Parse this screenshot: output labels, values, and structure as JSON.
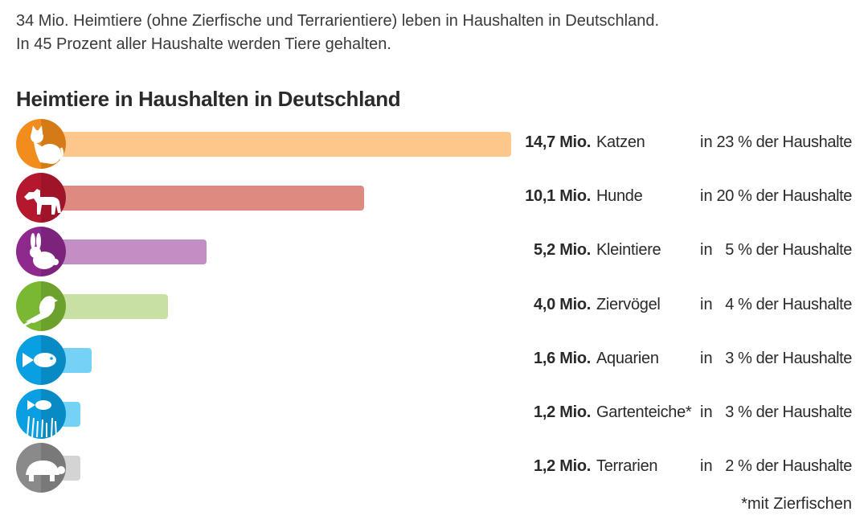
{
  "intro": {
    "line1": "34 Mio. Heimtiere (ohne Zierfische und Terrarientiere) leben in Haushalten in Deutschland.",
    "line2": "In 45 Prozent aller Haushalte werden Tiere gehalten."
  },
  "chart_data": {
    "type": "bar",
    "title": "Heimtiere in Haushalten in Deutschland",
    "unit": "Mio.",
    "xlabel": "",
    "ylabel": "",
    "xlim": [
      0,
      14.7
    ],
    "rows": [
      {
        "category": "Katzen",
        "value": 14.7,
        "value_label": "14,7 Mio.",
        "label": "Katzen",
        "prefix": "in",
        "percent_label": "23 % der Haushalte",
        "color": "#fdc68b",
        "icon_color": "#f28c1c",
        "icon": "cat-icon"
      },
      {
        "category": "Hunde",
        "value": 10.1,
        "value_label": "10,1 Mio.",
        "label": "Hunde",
        "prefix": "in",
        "percent_label": "20 % der Haushalte",
        "color": "#de8a80",
        "icon_color": "#b5172f",
        "icon": "dog-icon"
      },
      {
        "category": "Kleintiere",
        "value": 5.2,
        "value_label": "5,2 Mio.",
        "label": "Kleintiere",
        "prefix": "in",
        "percent_label": "5 % der Haushalte",
        "color": "#c28ec4",
        "icon_color": "#8e2a8e",
        "icon": "rabbit-icon"
      },
      {
        "category": "Ziervögel",
        "value": 4.0,
        "value_label": "4,0 Mio.",
        "label": "Ziervögel",
        "prefix": "in",
        "percent_label": "4 % der Haushalte",
        "color": "#c8e0a4",
        "icon_color": "#7ab833",
        "icon": "bird-icon"
      },
      {
        "category": "Aquarien",
        "value": 1.6,
        "value_label": "1,6 Mio.",
        "label": "Aquarien",
        "prefix": "in",
        "percent_label": "3 % der Haushalte",
        "color": "#74d2f7",
        "icon_color": "#0a9fe0",
        "icon": "fish-icon"
      },
      {
        "category": "Gartenteiche",
        "value": 1.2,
        "value_label": "1,2 Mio.",
        "label": "Gartenteiche*",
        "prefix": "in",
        "percent_label": "3 % der Haushalte",
        "color": "#74d2f7",
        "icon_color": "#0a9fe0",
        "icon": "pond-fish-icon"
      },
      {
        "category": "Terrarien",
        "value": 1.2,
        "value_label": "1,2 Mio.",
        "label": "Terrarien",
        "prefix": "in",
        "percent_label": "2 % der Haushalte",
        "color": "#d4d4d4",
        "icon_color": "#8a8a8a",
        "icon": "turtle-icon"
      }
    ]
  },
  "footnote": "*mit Zierfischen"
}
